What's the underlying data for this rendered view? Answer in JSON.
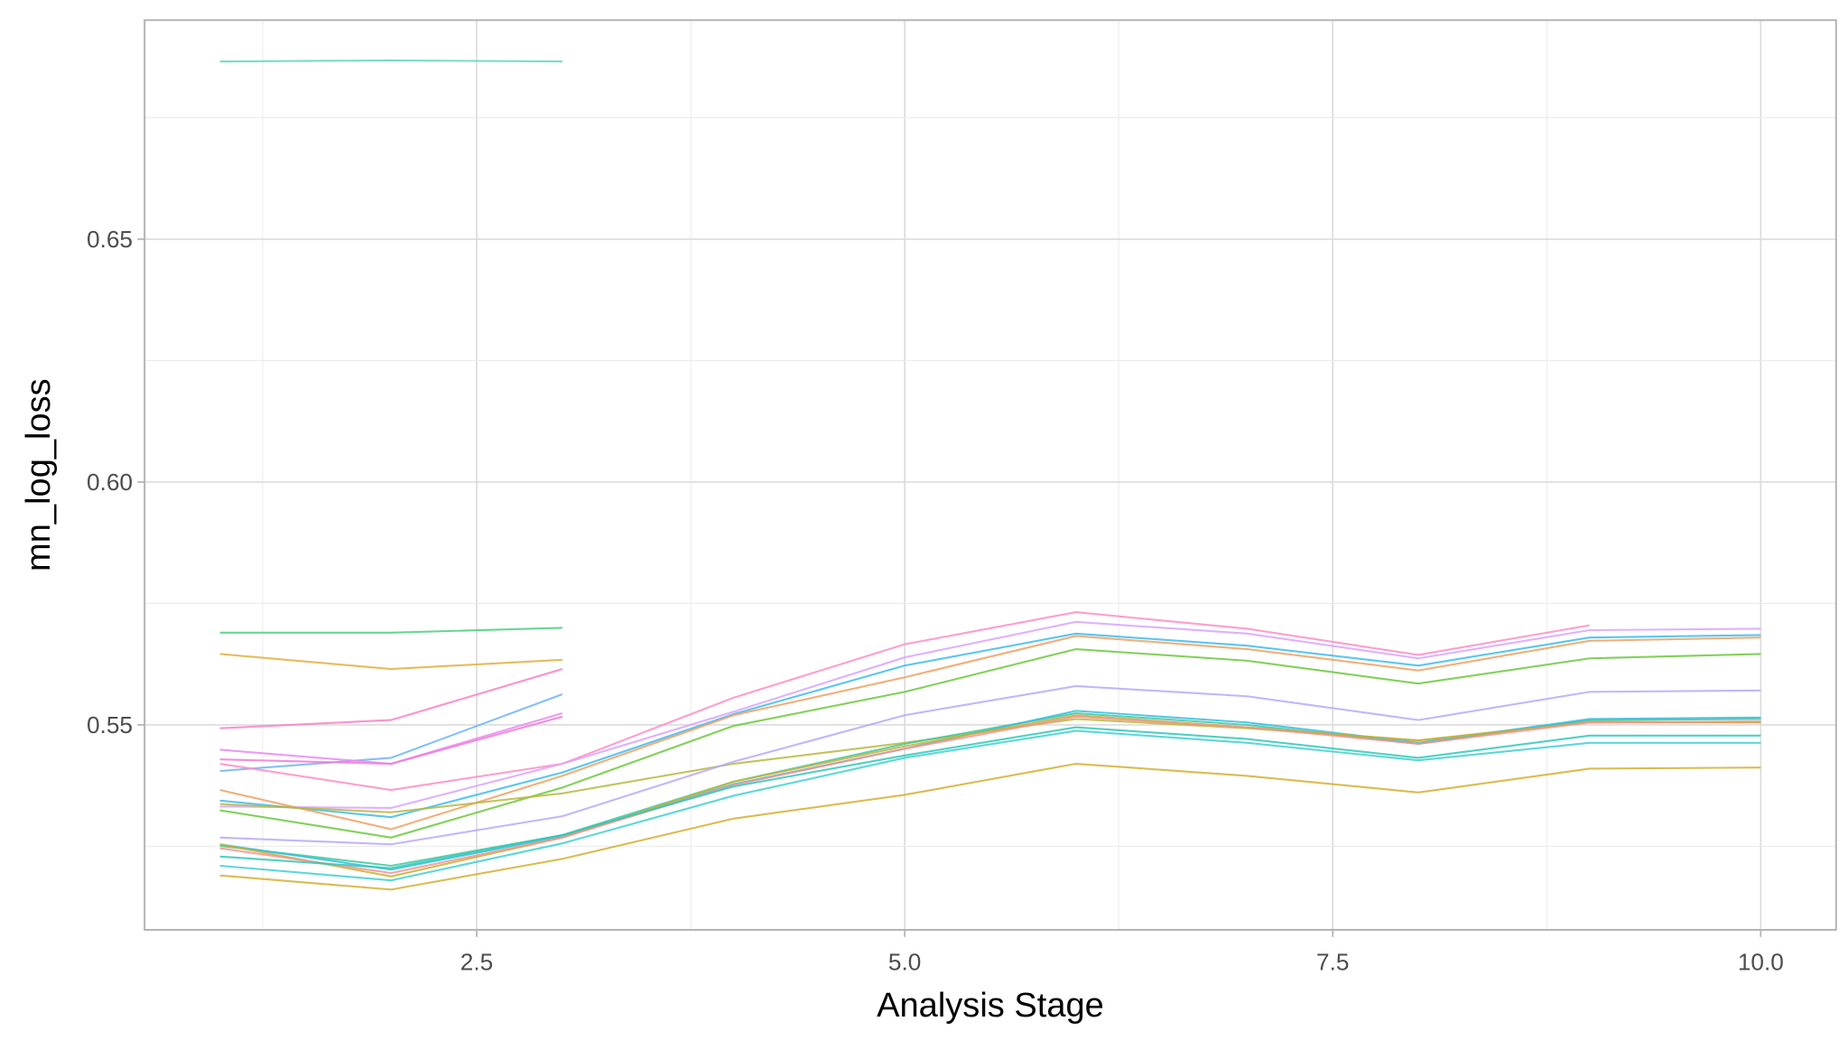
{
  "chart_data": {
    "type": "line",
    "title": "",
    "xlabel": "Analysis Stage",
    "ylabel": "mn_log_loss",
    "xlim": [
      0.56,
      10.44
    ],
    "ylim": [
      0.5078,
      0.6951
    ],
    "x_ticks": [
      2.5,
      5.0,
      7.5,
      10.0
    ],
    "x_tick_labels": [
      "2.5",
      "5.0",
      "7.5",
      "10.0"
    ],
    "y_ticks": [
      0.55,
      0.6,
      0.65
    ],
    "y_tick_labels": [
      "0.55",
      "0.60",
      "0.65"
    ],
    "grid": true,
    "legend": "none",
    "series": [
      {
        "color": "#5fd6c0",
        "x": [
          1,
          2,
          3
        ],
        "values": [
          0.6866,
          0.6868,
          0.6866
        ]
      },
      {
        "color": "#4ccf7e",
        "x": [
          1,
          2,
          3
        ],
        "values": [
          0.569,
          0.569,
          0.57
        ]
      },
      {
        "color": "#e0b040",
        "x": [
          1,
          2,
          3
        ],
        "values": [
          0.5646,
          0.5615,
          0.5634
        ]
      },
      {
        "color": "#f97fc8",
        "x": [
          1,
          2,
          3
        ],
        "values": [
          0.5493,
          0.551,
          0.5615
        ]
      },
      {
        "color": "#6cb4f8",
        "x": [
          1,
          2,
          3
        ],
        "values": [
          0.5405,
          0.5432,
          0.5563
        ]
      },
      {
        "color": "#e889f0",
        "x": [
          1,
          2,
          3
        ],
        "values": [
          0.5449,
          0.542,
          0.5524
        ]
      },
      {
        "color": "#f37ad8",
        "x": [
          1,
          2,
          3
        ],
        "values": [
          0.5429,
          0.542,
          0.5517
        ]
      },
      {
        "color": "#ff8cc6",
        "x": [
          1,
          2,
          3,
          4,
          5,
          6,
          7,
          8,
          9
        ],
        "values": [
          0.542,
          0.5366,
          0.542,
          0.5556,
          0.5666,
          0.5732,
          0.5698,
          0.5644,
          0.5705
        ]
      },
      {
        "color": "#d9a3fb",
        "x": [
          1,
          2,
          3,
          4,
          5,
          6,
          7,
          8,
          9,
          10
        ],
        "values": [
          0.5332,
          0.5329,
          0.542,
          0.5527,
          0.5639,
          0.5712,
          0.5688,
          0.5637,
          0.5695,
          0.5698
        ]
      },
      {
        "color": "#3cbcf0",
        "x": [
          1,
          2,
          3,
          4,
          5,
          6,
          7,
          8,
          9,
          10
        ],
        "values": [
          0.5344,
          0.531,
          0.5402,
          0.5522,
          0.5622,
          0.5688,
          0.5663,
          0.5622,
          0.568,
          0.5685
        ]
      },
      {
        "color": "#f0a060",
        "x": [
          1,
          2,
          3,
          4,
          5,
          6,
          7,
          8,
          9,
          10
        ],
        "values": [
          0.5366,
          0.5285,
          0.5395,
          0.552,
          0.5598,
          0.5683,
          0.5656,
          0.5612,
          0.5673,
          0.568
        ]
      },
      {
        "color": "#6cc83c",
        "x": [
          1,
          2,
          3,
          4,
          5,
          6,
          7,
          8,
          9,
          10
        ],
        "values": [
          0.5324,
          0.5268,
          0.5371,
          0.5498,
          0.5568,
          0.5656,
          0.5632,
          0.5585,
          0.5637,
          0.5646
        ]
      },
      {
        "color": "#b8b840",
        "x": [
          1,
          2,
          3,
          4,
          5,
          6,
          7,
          8,
          9,
          10
        ],
        "values": [
          0.5337,
          0.532,
          0.5359,
          0.542,
          0.5463,
          0.5512,
          0.5493,
          0.5468,
          0.5507,
          0.5505
        ]
      },
      {
        "color": "#b8a8fa",
        "x": [
          1,
          2,
          3,
          4,
          5,
          6,
          7,
          8,
          9,
          10
        ],
        "values": [
          0.5268,
          0.5254,
          0.5312,
          0.5424,
          0.552,
          0.558,
          0.5559,
          0.551,
          0.5568,
          0.5571
        ]
      },
      {
        "color": "#40c8a0",
        "x": [
          1,
          2,
          3,
          4,
          5,
          6,
          7,
          8,
          9,
          10
        ],
        "values": [
          0.5251,
          0.521,
          0.5273,
          0.5383,
          0.5461,
          0.5524,
          0.55,
          0.5461,
          0.551,
          0.5512
        ]
      },
      {
        "color": "#30c0e0",
        "x": [
          1,
          2,
          3,
          4,
          5,
          6,
          7,
          8,
          9,
          10
        ],
        "values": [
          0.5254,
          0.5202,
          0.5271,
          0.5378,
          0.5451,
          0.5529,
          0.5505,
          0.5463,
          0.5512,
          0.5515
        ]
      },
      {
        "color": "#c8b030",
        "x": [
          1,
          2,
          3,
          4,
          5,
          6,
          7,
          8,
          9,
          10
        ],
        "values": [
          0.5254,
          0.5188,
          0.5268,
          0.5383,
          0.5456,
          0.552,
          0.5495,
          0.5468,
          0.5505,
          0.5505
        ]
      },
      {
        "color": "#f89090",
        "x": [
          1,
          2,
          3,
          4,
          5,
          6,
          7,
          8,
          9,
          10
        ],
        "values": [
          0.5246,
          0.5195,
          0.5268,
          0.5376,
          0.5451,
          0.5517,
          0.5495,
          0.5461,
          0.5505,
          0.5507
        ]
      },
      {
        "color": "#30c8b8",
        "x": [
          1,
          2,
          3,
          4,
          5,
          6,
          7,
          8,
          9,
          10
        ],
        "values": [
          0.5229,
          0.5205,
          0.5273,
          0.5373,
          0.5437,
          0.5495,
          0.5471,
          0.5432,
          0.5478,
          0.5478
        ]
      },
      {
        "color": "#40d0d0",
        "x": [
          1,
          2,
          3,
          4,
          5,
          6,
          7,
          8,
          9,
          10
        ],
        "values": [
          0.521,
          0.518,
          0.5256,
          0.5354,
          0.5432,
          0.5488,
          0.5463,
          0.5427,
          0.5463,
          0.5463
        ]
      },
      {
        "color": "#d4b030",
        "x": [
          1,
          2,
          3,
          4,
          5,
          6,
          7,
          8,
          9,
          10
        ],
        "values": [
          0.519,
          0.5161,
          0.5224,
          0.5307,
          0.5356,
          0.542,
          0.5395,
          0.5361,
          0.541,
          0.5412
        ]
      }
    ]
  }
}
